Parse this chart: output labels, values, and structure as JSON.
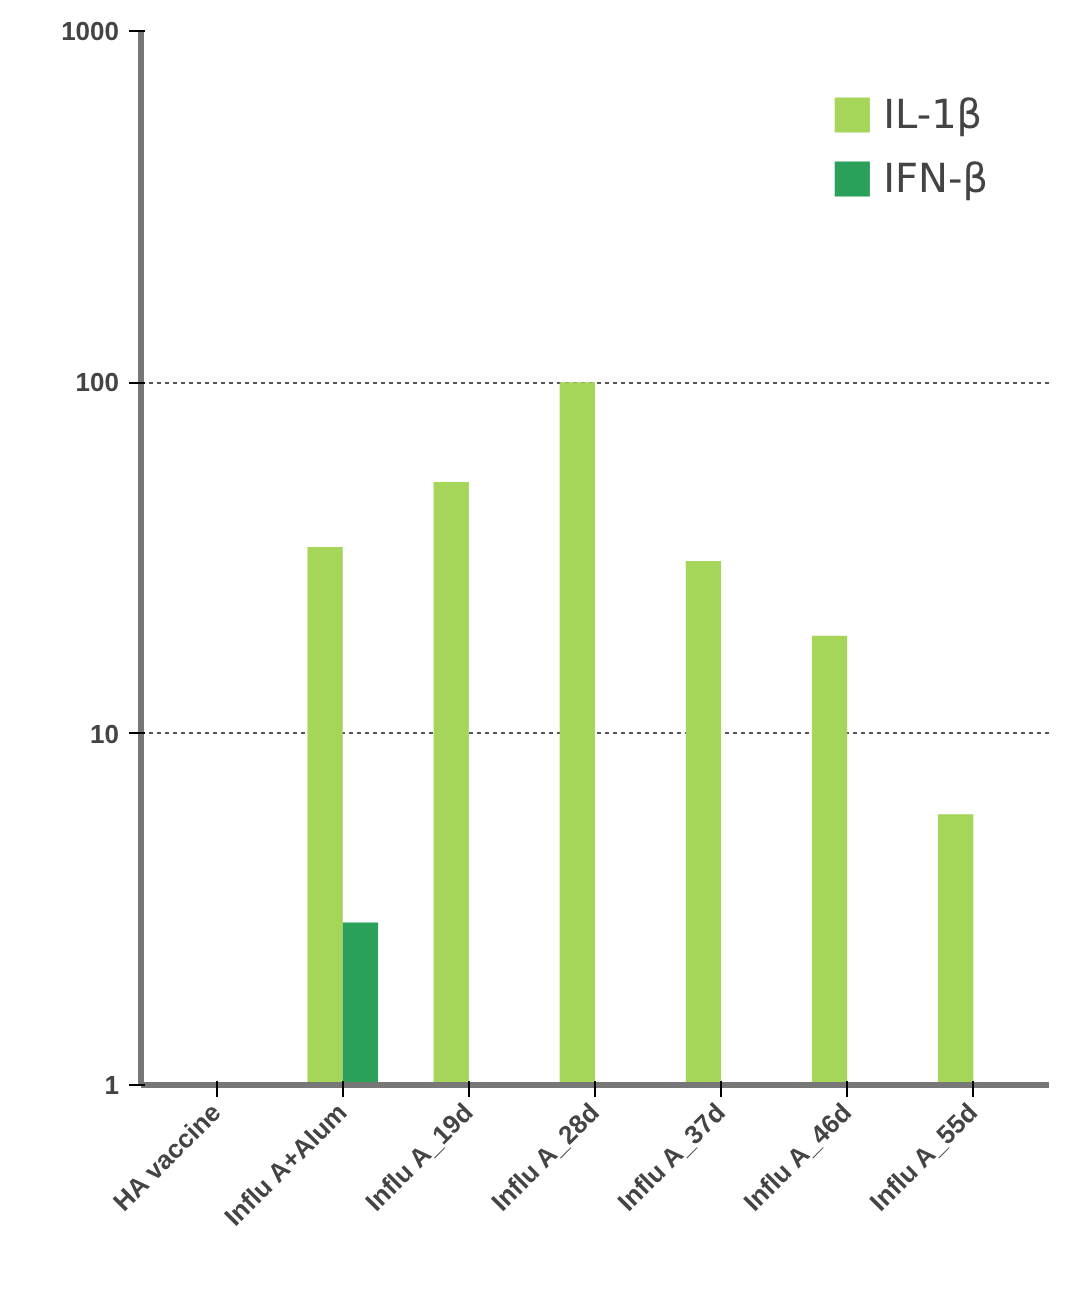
{
  "chart_data": {
    "type": "bar",
    "categories": [
      "HA vaccine",
      "Influ A+Alum",
      "Influ A_19d",
      "Influ A_28d",
      "Influ A_37d",
      "Influ A_46d",
      "Influ A_55d"
    ],
    "series": [
      {
        "name": "IL-1β",
        "color": "#a5d65a",
        "values": [
          null,
          34,
          52,
          100,
          31,
          19,
          5.9
        ]
      },
      {
        "name": "IFN-β",
        "color": "#2aa05a",
        "values": [
          null,
          2.9,
          null,
          null,
          null,
          null,
          null
        ]
      }
    ],
    "log": true,
    "ylim": [
      1,
      1000
    ],
    "yticks": [
      1,
      10,
      100,
      1000
    ],
    "grid": "y",
    "legend": "top right"
  }
}
